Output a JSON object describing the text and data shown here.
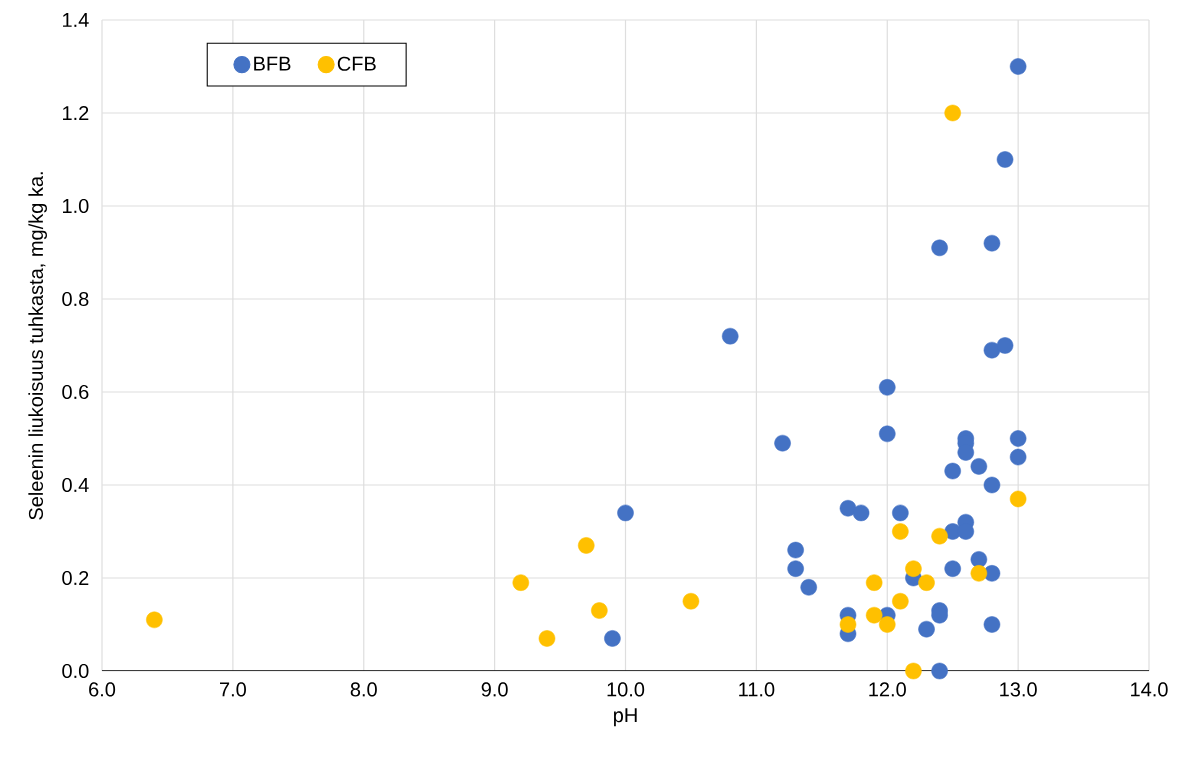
{
  "chart_data": {
    "type": "scatter",
    "xlabel": "pH",
    "ylabel": "Seleenin liukoisuus tuhkasta, mg/kg ka.",
    "xlim": [
      6,
      14
    ],
    "ylim": [
      0,
      1.4
    ],
    "xticks": [
      {
        "value": 6,
        "label": "6.0"
      },
      {
        "value": 7,
        "label": "7.0"
      },
      {
        "value": 8,
        "label": "8.0"
      },
      {
        "value": 9,
        "label": "9.0"
      },
      {
        "value": 10,
        "label": "10.0"
      },
      {
        "value": 11,
        "label": "11.0"
      },
      {
        "value": 12,
        "label": "12.0"
      },
      {
        "value": 13,
        "label": "13.0"
      },
      {
        "value": 14,
        "label": "14.0"
      }
    ],
    "yticks": [
      {
        "value": 0,
        "label": "0.0"
      },
      {
        "value": 0.2,
        "label": "0.2"
      },
      {
        "value": 0.4,
        "label": "0.4"
      },
      {
        "value": 0.6,
        "label": "0.6"
      },
      {
        "value": 0.8,
        "label": "0.8"
      },
      {
        "value": 1.0,
        "label": "1.0"
      },
      {
        "value": 1.2,
        "label": "1.2"
      },
      {
        "value": 1.4,
        "label": "1.4"
      }
    ],
    "grid": true,
    "legend": "top left",
    "marker": "circle",
    "series": [
      {
        "name": "BFB",
        "color": "#4472c4",
        "x": [
          13.0,
          12.9,
          12.4,
          12.8,
          10.8,
          12.8,
          12.9,
          12.0,
          12.0,
          11.2,
          12.6,
          12.6,
          12.6,
          13.0,
          13.0,
          12.5,
          12.7,
          12.8,
          10.0,
          11.7,
          11.8,
          12.1,
          12.5,
          12.6,
          12.6,
          11.3,
          11.3,
          12.5,
          12.7,
          12.8,
          12.2,
          11.4,
          11.7,
          11.7,
          12.0,
          12.4,
          12.4,
          12.3,
          12.8,
          9.9,
          12.4
        ],
        "values": [
          1.3,
          1.1,
          0.91,
          0.92,
          0.72,
          0.69,
          0.7,
          0.61,
          0.51,
          0.49,
          0.5,
          0.49,
          0.47,
          0.5,
          0.46,
          0.43,
          0.44,
          0.4,
          0.34,
          0.35,
          0.34,
          0.34,
          0.3,
          0.32,
          0.3,
          0.26,
          0.22,
          0.22,
          0.24,
          0.21,
          0.2,
          0.18,
          0.12,
          0.08,
          0.12,
          0.13,
          0.12,
          0.09,
          0.1,
          0.07,
          0.0
        ]
      },
      {
        "name": "CFB",
        "color": "#ffc000",
        "x": [
          6.4,
          9.2,
          9.4,
          9.7,
          9.8,
          10.5,
          11.7,
          11.9,
          11.9,
          12.0,
          12.1,
          12.1,
          12.2,
          12.2,
          12.3,
          12.4,
          12.5,
          12.7,
          13.0
        ],
        "values": [
          0.11,
          0.19,
          0.07,
          0.27,
          0.13,
          0.15,
          0.1,
          0.19,
          0.12,
          0.1,
          0.3,
          0.15,
          0.22,
          0.0,
          0.19,
          0.29,
          1.2,
          0.21,
          0.37
        ]
      }
    ]
  }
}
